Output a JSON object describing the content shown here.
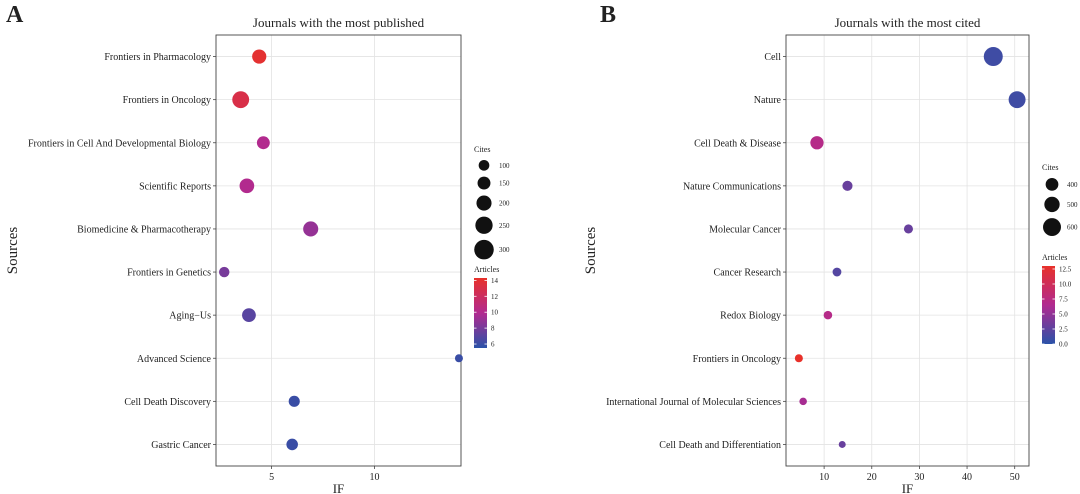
{
  "chart_data": [
    {
      "panel_label": "A",
      "type": "scatter",
      "title": "Journals with the most published",
      "xlabel": "IF",
      "ylabel": "Sources",
      "xlim": [
        2.3,
        14.2
      ],
      "xticks": [
        5,
        10
      ],
      "xtick_labels": [
        "5",
        "10"
      ],
      "categories": [
        "Frontiers in Pharmacology",
        "Frontiers in Oncology",
        "Frontiers in Cell And Developmental Biology",
        "Scientific Reports",
        "Biomedicine & Pharmacotherapy",
        "Frontiers in Genetics",
        "Aging−Us",
        "Advanced Science",
        "Cell Death Discovery",
        "Gastric Cancer"
      ],
      "points": [
        {
          "source": "Frontiers in Pharmacology",
          "IF": 4.4,
          "articles": 14,
          "cites": 180
        },
        {
          "source": "Frontiers in Oncology",
          "IF": 3.5,
          "articles": 13,
          "cites": 240
        },
        {
          "source": "Frontiers in Cell And Developmental Biology",
          "IF": 4.6,
          "articles": 10,
          "cites": 150
        },
        {
          "source": "Scientific Reports",
          "IF": 3.8,
          "articles": 10,
          "cites": 190
        },
        {
          "source": "Biomedicine & Pharmacotherapy",
          "IF": 6.9,
          "articles": 9,
          "cites": 200
        },
        {
          "source": "Frontiers in Genetics",
          "IF": 2.7,
          "articles": 8,
          "cites": 95
        },
        {
          "source": "Aging−Us",
          "IF": 3.9,
          "articles": 7,
          "cites": 170
        },
        {
          "source": "Advanced Science",
          "IF": 14.1,
          "articles": 6,
          "cites": 40
        },
        {
          "source": "Cell Death Discovery",
          "IF": 6.1,
          "articles": 6,
          "cites": 110
        },
        {
          "source": "Gastric Cancer",
          "IF": 6.0,
          "articles": 6,
          "cites": 120
        }
      ],
      "size_legend": {
        "title": "Cites",
        "values": [
          100,
          150,
          200,
          250,
          300
        ],
        "labels": [
          "100",
          "150",
          "200",
          "250",
          "300"
        ]
      },
      "color_legend": {
        "title": "Articles",
        "min": 5.5,
        "max": 14.3,
        "ticks": [
          6,
          8,
          10,
          12,
          14
        ],
        "tick_labels": [
          "6",
          "8",
          "10",
          "12",
          "14"
        ]
      },
      "size_range": [
        40,
        320
      ],
      "radius_range": [
        4.0,
        10.2
      ],
      "grid": true
    },
    {
      "panel_label": "B",
      "type": "scatter",
      "title": "Journals with the most cited",
      "xlabel": "IF",
      "ylabel": "Sources",
      "xlim": [
        2,
        53
      ],
      "xticks": [
        10,
        20,
        30,
        40,
        50
      ],
      "xtick_labels": [
        "10",
        "20",
        "30",
        "40",
        "50"
      ],
      "categories": [
        "Cell",
        "Nature",
        "Cell Death & Disease",
        "Nature Communications",
        "Molecular Cancer",
        "Cancer Research",
        "Redox Biology",
        "Frontiers in Oncology",
        "International Journal of Molecular Sciences",
        "Cell Death and Differentiation"
      ],
      "points": [
        {
          "source": "Cell",
          "IF": 45.5,
          "articles": 1,
          "cites": 640
        },
        {
          "source": "Nature",
          "IF": 50.5,
          "articles": 1,
          "cites": 560
        },
        {
          "source": "Cell Death & Disease",
          "IF": 8.5,
          "articles": 7,
          "cites": 420
        },
        {
          "source": "Nature Communications",
          "IF": 14.9,
          "articles": 3,
          "cites": 300
        },
        {
          "source": "Molecular Cancer",
          "IF": 27.7,
          "articles": 3,
          "cites": 260
        },
        {
          "source": "Cancer Research",
          "IF": 12.7,
          "articles": 2,
          "cites": 250
        },
        {
          "source": "Redox Biology",
          "IF": 10.8,
          "articles": 7,
          "cites": 240
        },
        {
          "source": "Frontiers in Oncology",
          "IF": 4.7,
          "articles": 13,
          "cites": 220
        },
        {
          "source": "International Journal of Molecular Sciences",
          "IF": 5.6,
          "articles": 6,
          "cites": 200
        },
        {
          "source": "Cell Death and Differentiation",
          "IF": 13.8,
          "articles": 3,
          "cites": 180
        }
      ],
      "size_legend": {
        "title": "Cites",
        "values": [
          400,
          500,
          600
        ],
        "labels": [
          "400",
          "500",
          "600"
        ]
      },
      "color_legend": {
        "title": "Articles",
        "min": 0,
        "max": 13,
        "ticks": [
          0,
          2.5,
          5,
          7.5,
          10,
          12.5
        ],
        "tick_labels": [
          "0.0",
          "2.5",
          "5.0",
          "7.5",
          "10.0",
          "12.5"
        ]
      },
      "size_range": [
        180,
        640
      ],
      "radius_range": [
        3.5,
        9.5
      ],
      "grid": true
    }
  ]
}
